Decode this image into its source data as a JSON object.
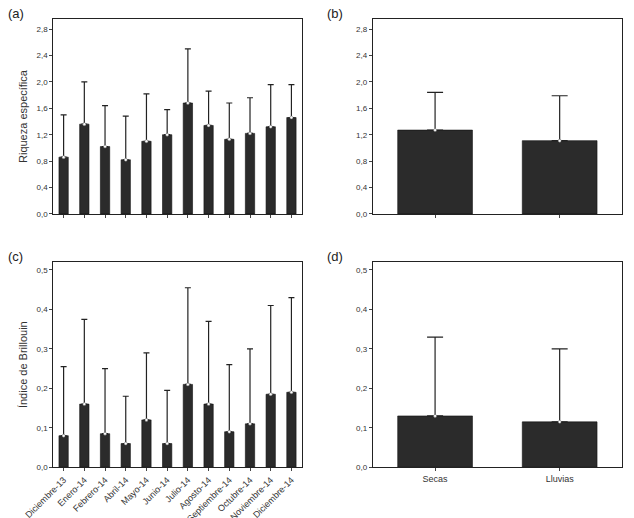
{
  "chart_data": [
    {
      "type": "bar",
      "title": "(a)",
      "y_label": "Riqueza específica",
      "categories": [
        "Diciembre-13",
        "Enero-14",
        "Febrero-14",
        "Abril-14",
        "Mayo-14",
        "Junio-14",
        "Julio-14",
        "Agosto-14",
        "Septiembre-14",
        "Octubre-14",
        "Noviembre-14",
        "Diciembre-14"
      ],
      "values": [
        0.86,
        1.36,
        1.02,
        0.82,
        1.1,
        1.2,
        1.68,
        1.34,
        1.13,
        1.22,
        1.32,
        1.46
      ],
      "errors": [
        0.64,
        0.64,
        0.62,
        0.66,
        0.72,
        0.38,
        0.82,
        0.52,
        0.55,
        0.54,
        0.64,
        0.5
      ],
      "color": "#2b2b2b",
      "ylim": [
        0,
        2.95
      ],
      "yticks": [
        {
          "value": 0,
          "label": "0,0"
        },
        {
          "value": 0.4,
          "label": "0,4"
        },
        {
          "value": 0.8,
          "label": "0,8"
        },
        {
          "value": 1.2,
          "label": "1,2"
        },
        {
          "value": 1.6,
          "label": "1,6"
        },
        {
          "value": 2.0,
          "label": "2,0"
        },
        {
          "value": 2.4,
          "label": "2,4"
        },
        {
          "value": 2.8,
          "label": "2,8"
        }
      ],
      "tick_labels": "y",
      "grid": false
    },
    {
      "type": "bar",
      "title": "(b)",
      "categories": [
        "Secas",
        "Lluvias"
      ],
      "values": [
        1.27,
        1.11
      ],
      "errors": [
        0.57,
        0.68
      ],
      "color": "#2b2b2b",
      "ylim": [
        0,
        2.95
      ],
      "yticks": [
        {
          "value": 0,
          "label": "0,0"
        },
        {
          "value": 0.4,
          "label": "0,4"
        },
        {
          "value": 0.8,
          "label": "0,8"
        },
        {
          "value": 1.2,
          "label": "1,2"
        },
        {
          "value": 1.6,
          "label": "1,6"
        },
        {
          "value": 2.0,
          "label": "2,0"
        },
        {
          "value": 2.4,
          "label": "2,4"
        },
        {
          "value": 2.8,
          "label": "2,8"
        }
      ],
      "tick_labels": "y",
      "grid": false
    },
    {
      "type": "bar",
      "title": "(c)",
      "y_label": "Índice de Brillouin",
      "categories": [
        "Diciembre-13",
        "Enero-14",
        "Febrero-14",
        "Abril-14",
        "Mayo-14",
        "Junio-14",
        "Julio-14",
        "Agosto-14",
        "Septiembre-14",
        "Octubre-14",
        "Noviembre-14",
        "Diciembre-14"
      ],
      "values": [
        0.08,
        0.16,
        0.085,
        0.06,
        0.12,
        0.06,
        0.21,
        0.16,
        0.09,
        0.11,
        0.185,
        0.19
      ],
      "errors": [
        0.175,
        0.215,
        0.165,
        0.12,
        0.17,
        0.135,
        0.245,
        0.21,
        0.17,
        0.19,
        0.225,
        0.24
      ],
      "color": "#2b2b2b",
      "ylim": [
        0,
        0.52
      ],
      "yticks": [
        {
          "value": 0,
          "label": "0,0"
        },
        {
          "value": 0.1,
          "label": "0,1"
        },
        {
          "value": 0.2,
          "label": "0,2"
        },
        {
          "value": 0.3,
          "label": "0,3"
        },
        {
          "value": 0.4,
          "label": "0,4"
        },
        {
          "value": 0.5,
          "label": "0,5"
        }
      ],
      "grid": false
    },
    {
      "type": "bar",
      "title": "(d)",
      "categories": [
        "Secas",
        "Lluvias"
      ],
      "values": [
        0.13,
        0.115
      ],
      "errors": [
        0.2,
        0.185
      ],
      "color": "#2b2b2b",
      "ylim": [
        0,
        0.52
      ],
      "yticks": [
        {
          "value": 0,
          "label": "0,0"
        },
        {
          "value": 0.1,
          "label": "0,1"
        },
        {
          "value": 0.2,
          "label": "0,2"
        },
        {
          "value": 0.3,
          "label": "0,3"
        },
        {
          "value": 0.4,
          "label": "0,4"
        },
        {
          "value": 0.5,
          "label": "0,5"
        }
      ],
      "grid": false
    }
  ]
}
